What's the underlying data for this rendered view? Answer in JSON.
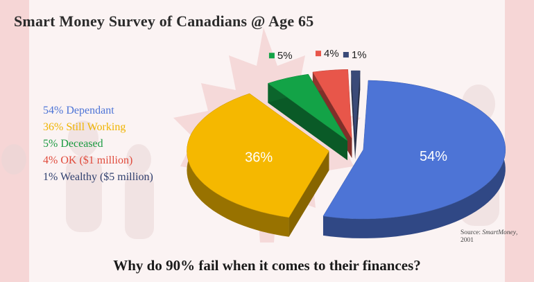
{
  "title": "Smart Money Survey of Canadians @ Age 65",
  "legend": [
    {
      "text": "54% Dependant",
      "color": "#4d74d6"
    },
    {
      "text": "36% Still Working",
      "color": "#efb400"
    },
    {
      "text": "5% Deceased",
      "color": "#1a9a40"
    },
    {
      "text": "4% OK ($1 million)",
      "color": "#e04a3b"
    },
    {
      "text": "1% Wealthy ($5 million)",
      "color": "#2f3f6e"
    }
  ],
  "source": {
    "prefix": "Source: ",
    "publication": "SmartMoney",
    "suffix": ",",
    "year": "2001"
  },
  "question": "Why do 90% fail when it comes to their finances?",
  "chart_data": {
    "type": "pie",
    "style": "3d-exploded",
    "categories": [
      "Dependant",
      "Still Working",
      "Deceased",
      "OK ($1 million)",
      "Wealthy ($5 million)"
    ],
    "values": [
      54,
      36,
      5,
      4,
      1
    ],
    "labels": [
      "54%",
      "36%",
      "5%",
      "4%",
      "1%"
    ],
    "colors": [
      "#4d74d6",
      "#f5b800",
      "#13a347",
      "#e8564a",
      "#3a4a78"
    ]
  }
}
